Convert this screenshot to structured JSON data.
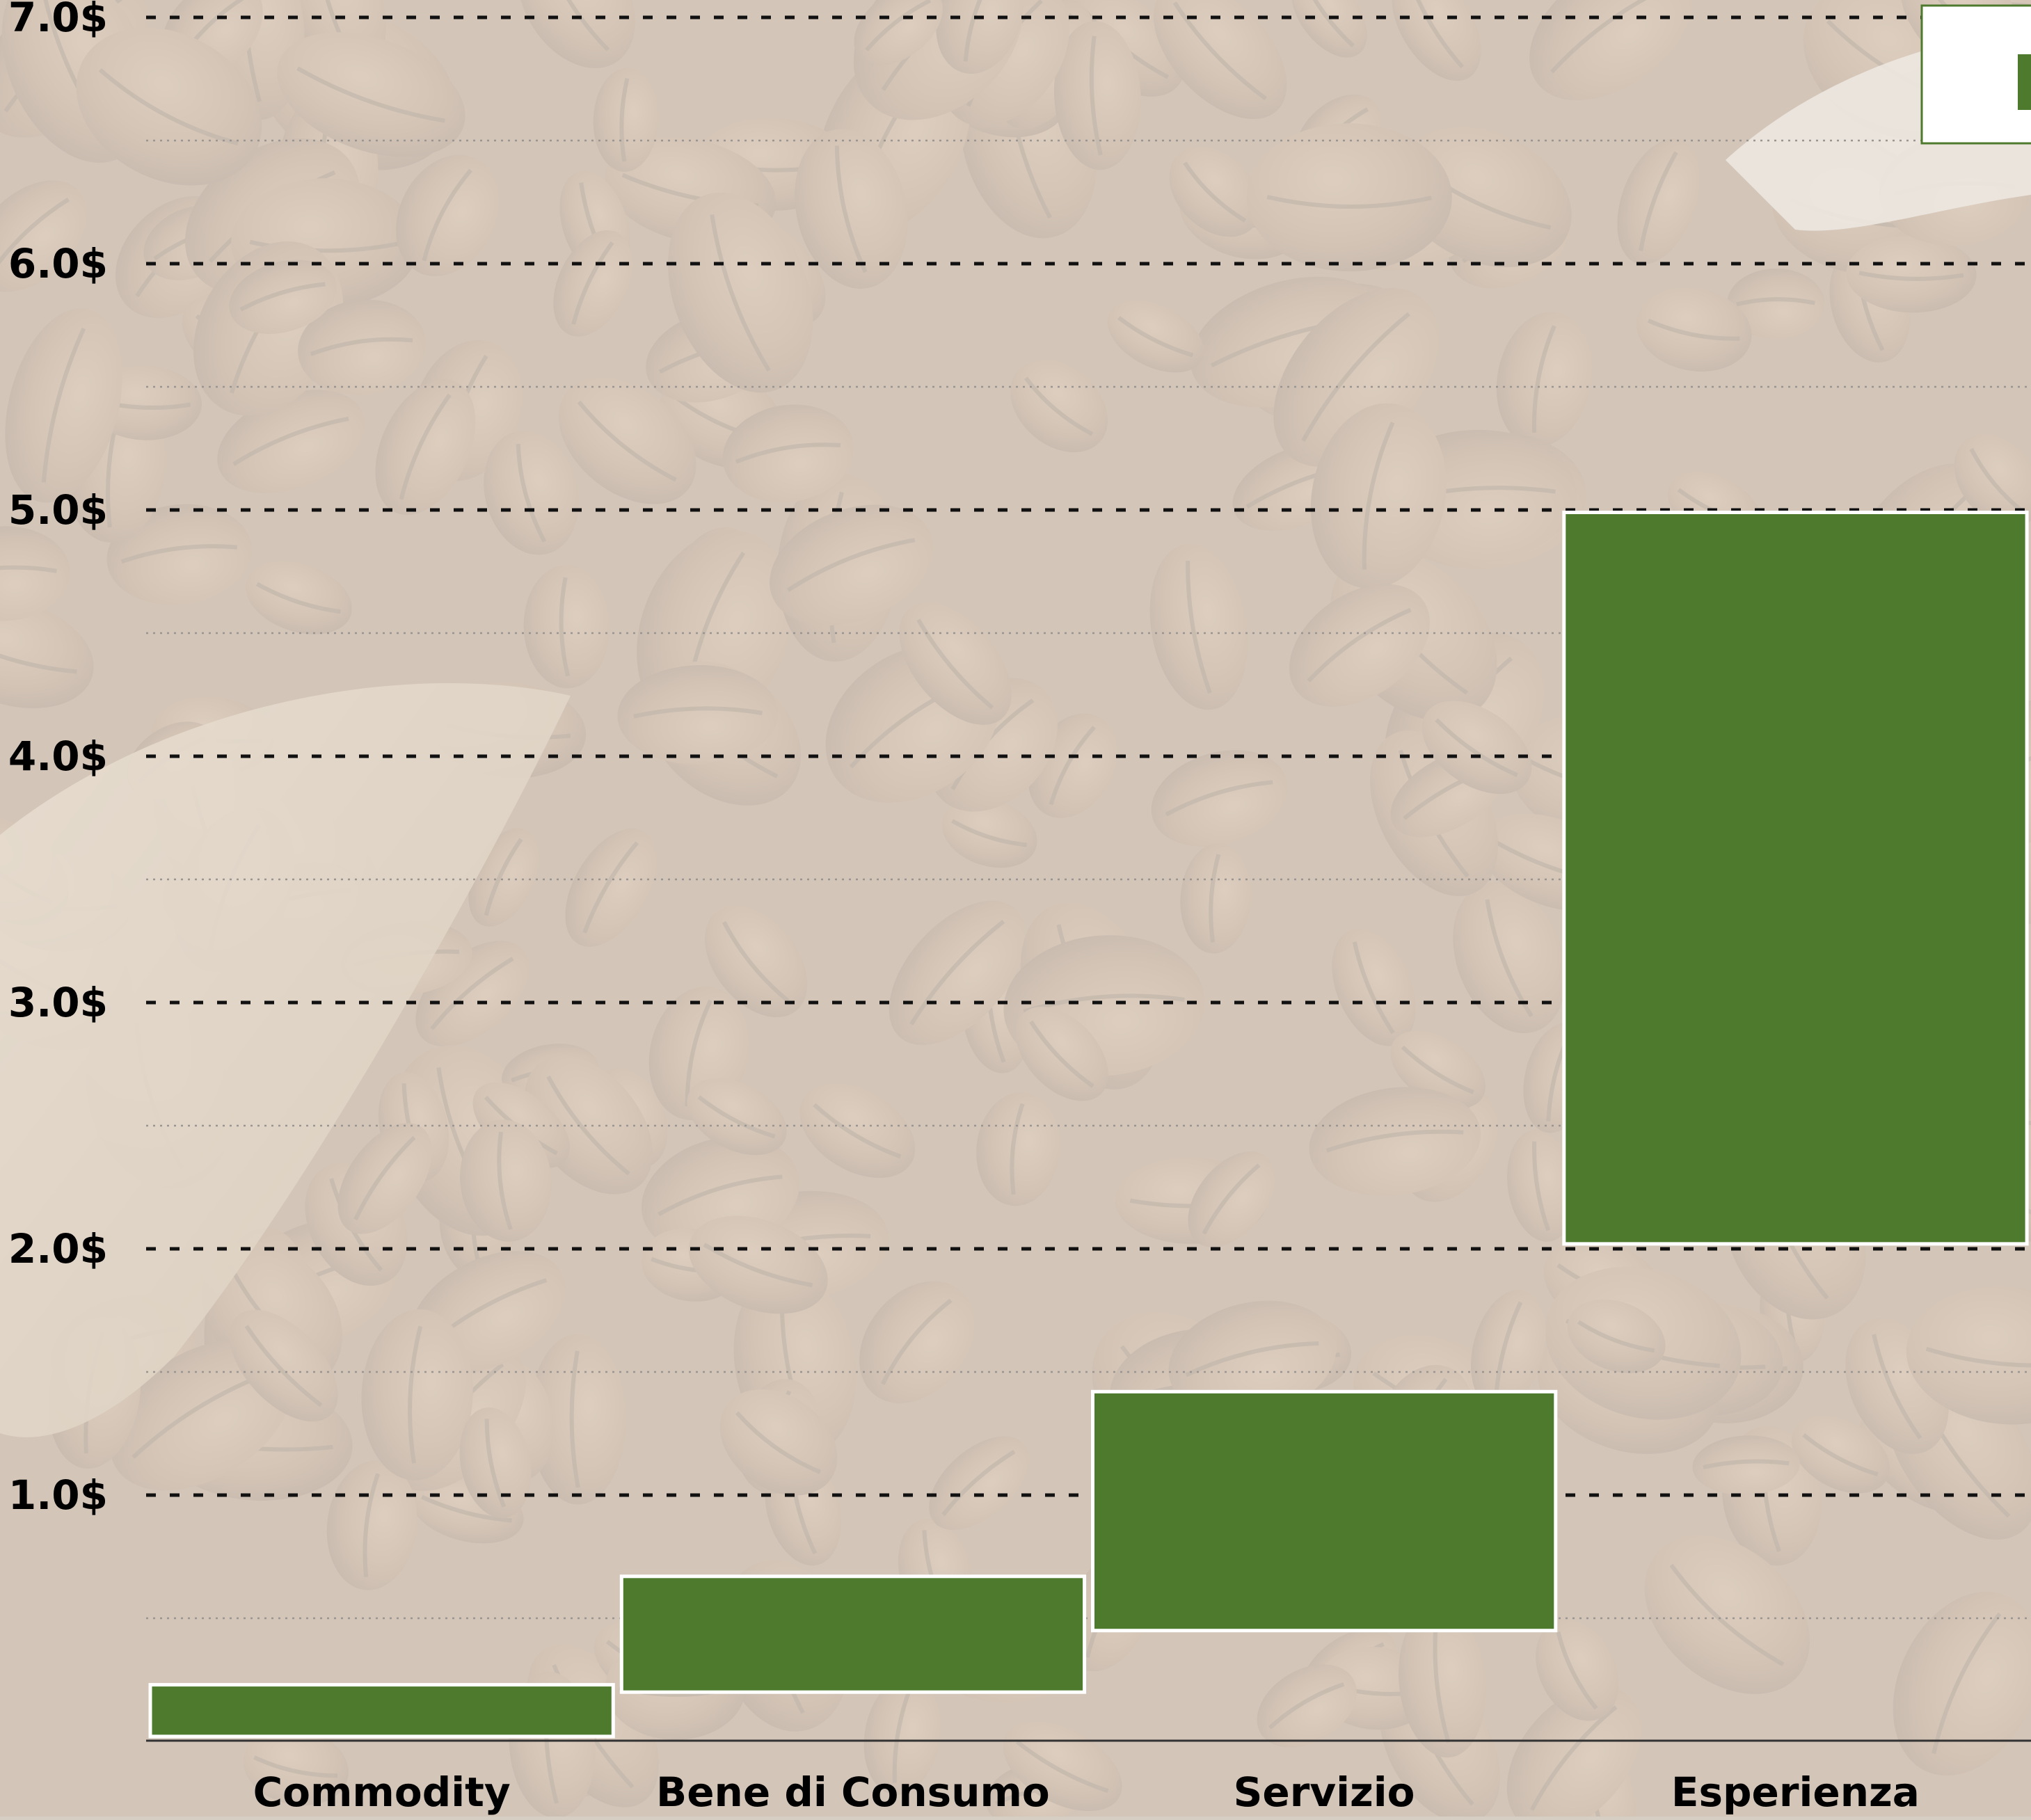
{
  "chart_data": {
    "type": "bar",
    "subtype": "floating-range",
    "title": "",
    "xlabel": "",
    "ylabel": "",
    "categories": [
      "Commodity",
      "Bene di Consumo",
      "Servizio",
      "Esperienza"
    ],
    "series": [
      {
        "ranges": [
          [
            0.02,
            0.23
          ],
          [
            0.2,
            0.67
          ],
          [
            0.45,
            1.42
          ],
          [
            2.02,
            4.99
          ]
        ]
      }
    ],
    "y_ticks": [
      "1.0$",
      "2.0$",
      "3.0$",
      "4.0$",
      "5.0$",
      "6.0$",
      "7.0$"
    ],
    "ylim": [
      -0.05,
      7.1
    ],
    "grid": true,
    "legend_position": "top-right",
    "colors": {
      "bar": "#4e7a2e",
      "bar_border": "#ffffff",
      "grid_major": "#111111",
      "grid_minor": "#9a9590",
      "axis_line": "#333333",
      "background_dark": "#7a5a3a",
      "background_light": "#e6e0da",
      "text": "#000000"
    },
    "background_image": "coffee-beans"
  }
}
